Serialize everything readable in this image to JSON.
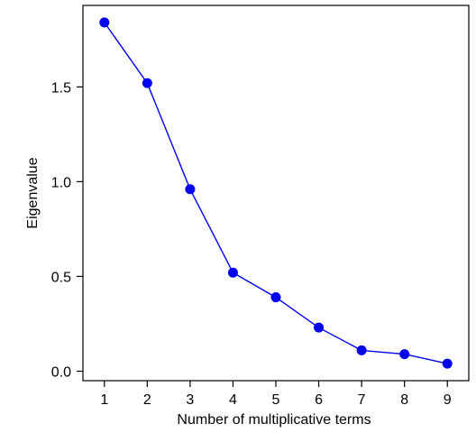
{
  "chart_data": {
    "type": "line",
    "title": "",
    "xlabel": "Number of multiplicative terms",
    "ylabel": "Eigenvalue",
    "x": [
      1,
      2,
      3,
      4,
      5,
      6,
      7,
      8,
      9
    ],
    "xticks": [
      "1",
      "2",
      "3",
      "4",
      "5",
      "6",
      "7",
      "8",
      "9"
    ],
    "yticks": [
      0.0,
      0.5,
      1.0,
      1.5
    ],
    "ytick_labels": [
      "0.0",
      "0.5",
      "1.0",
      "1.5"
    ],
    "xlim": [
      0.5,
      9.5
    ],
    "ylim": [
      -0.05,
      1.93
    ],
    "grid": false,
    "legend": "none",
    "series": [
      {
        "color": "#0000ee",
        "values": [
          1.84,
          1.52,
          0.96,
          0.52,
          0.39,
          0.23,
          0.11,
          0.09,
          0.04
        ]
      }
    ]
  }
}
